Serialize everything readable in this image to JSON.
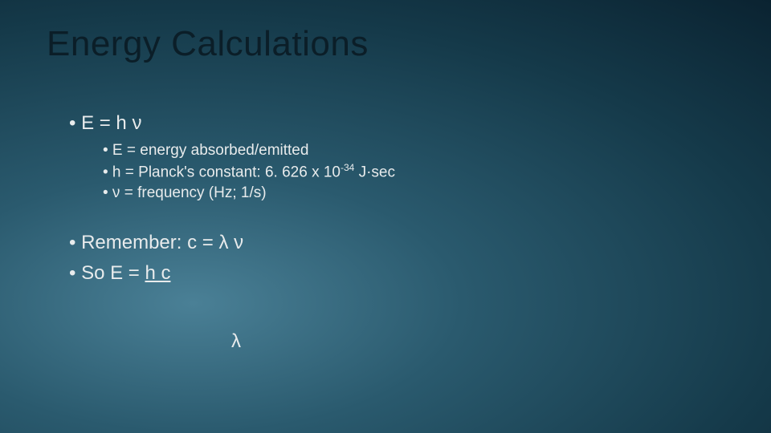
{
  "slide": {
    "title": "Energy Calculations",
    "background": {
      "type": "radial-gradient",
      "stops": [
        "#4a8096",
        "#2a5a6e",
        "#153a4a",
        "#0a2230",
        "#061820"
      ]
    },
    "title_color": "#0b1e28",
    "text_color": "#e8ebec",
    "title_fontsize": 44,
    "main_fontsize": 24,
    "sub_fontsize": 19,
    "bullets": {
      "formula_main": "• E = h ν",
      "sub": [
        "•  E = energy absorbed/emitted",
        "•  h = Planck's constant: 6. 626 x 10",
        "•  ν = frequency (Hz; 1/s)"
      ],
      "planck_exp": "-34",
      "planck_unit": " J·sec",
      "remember": "• Remember: c = λ ν",
      "so_prefix": "• So E = ",
      "frac_num": "h c",
      "frac_denom": "λ"
    }
  }
}
